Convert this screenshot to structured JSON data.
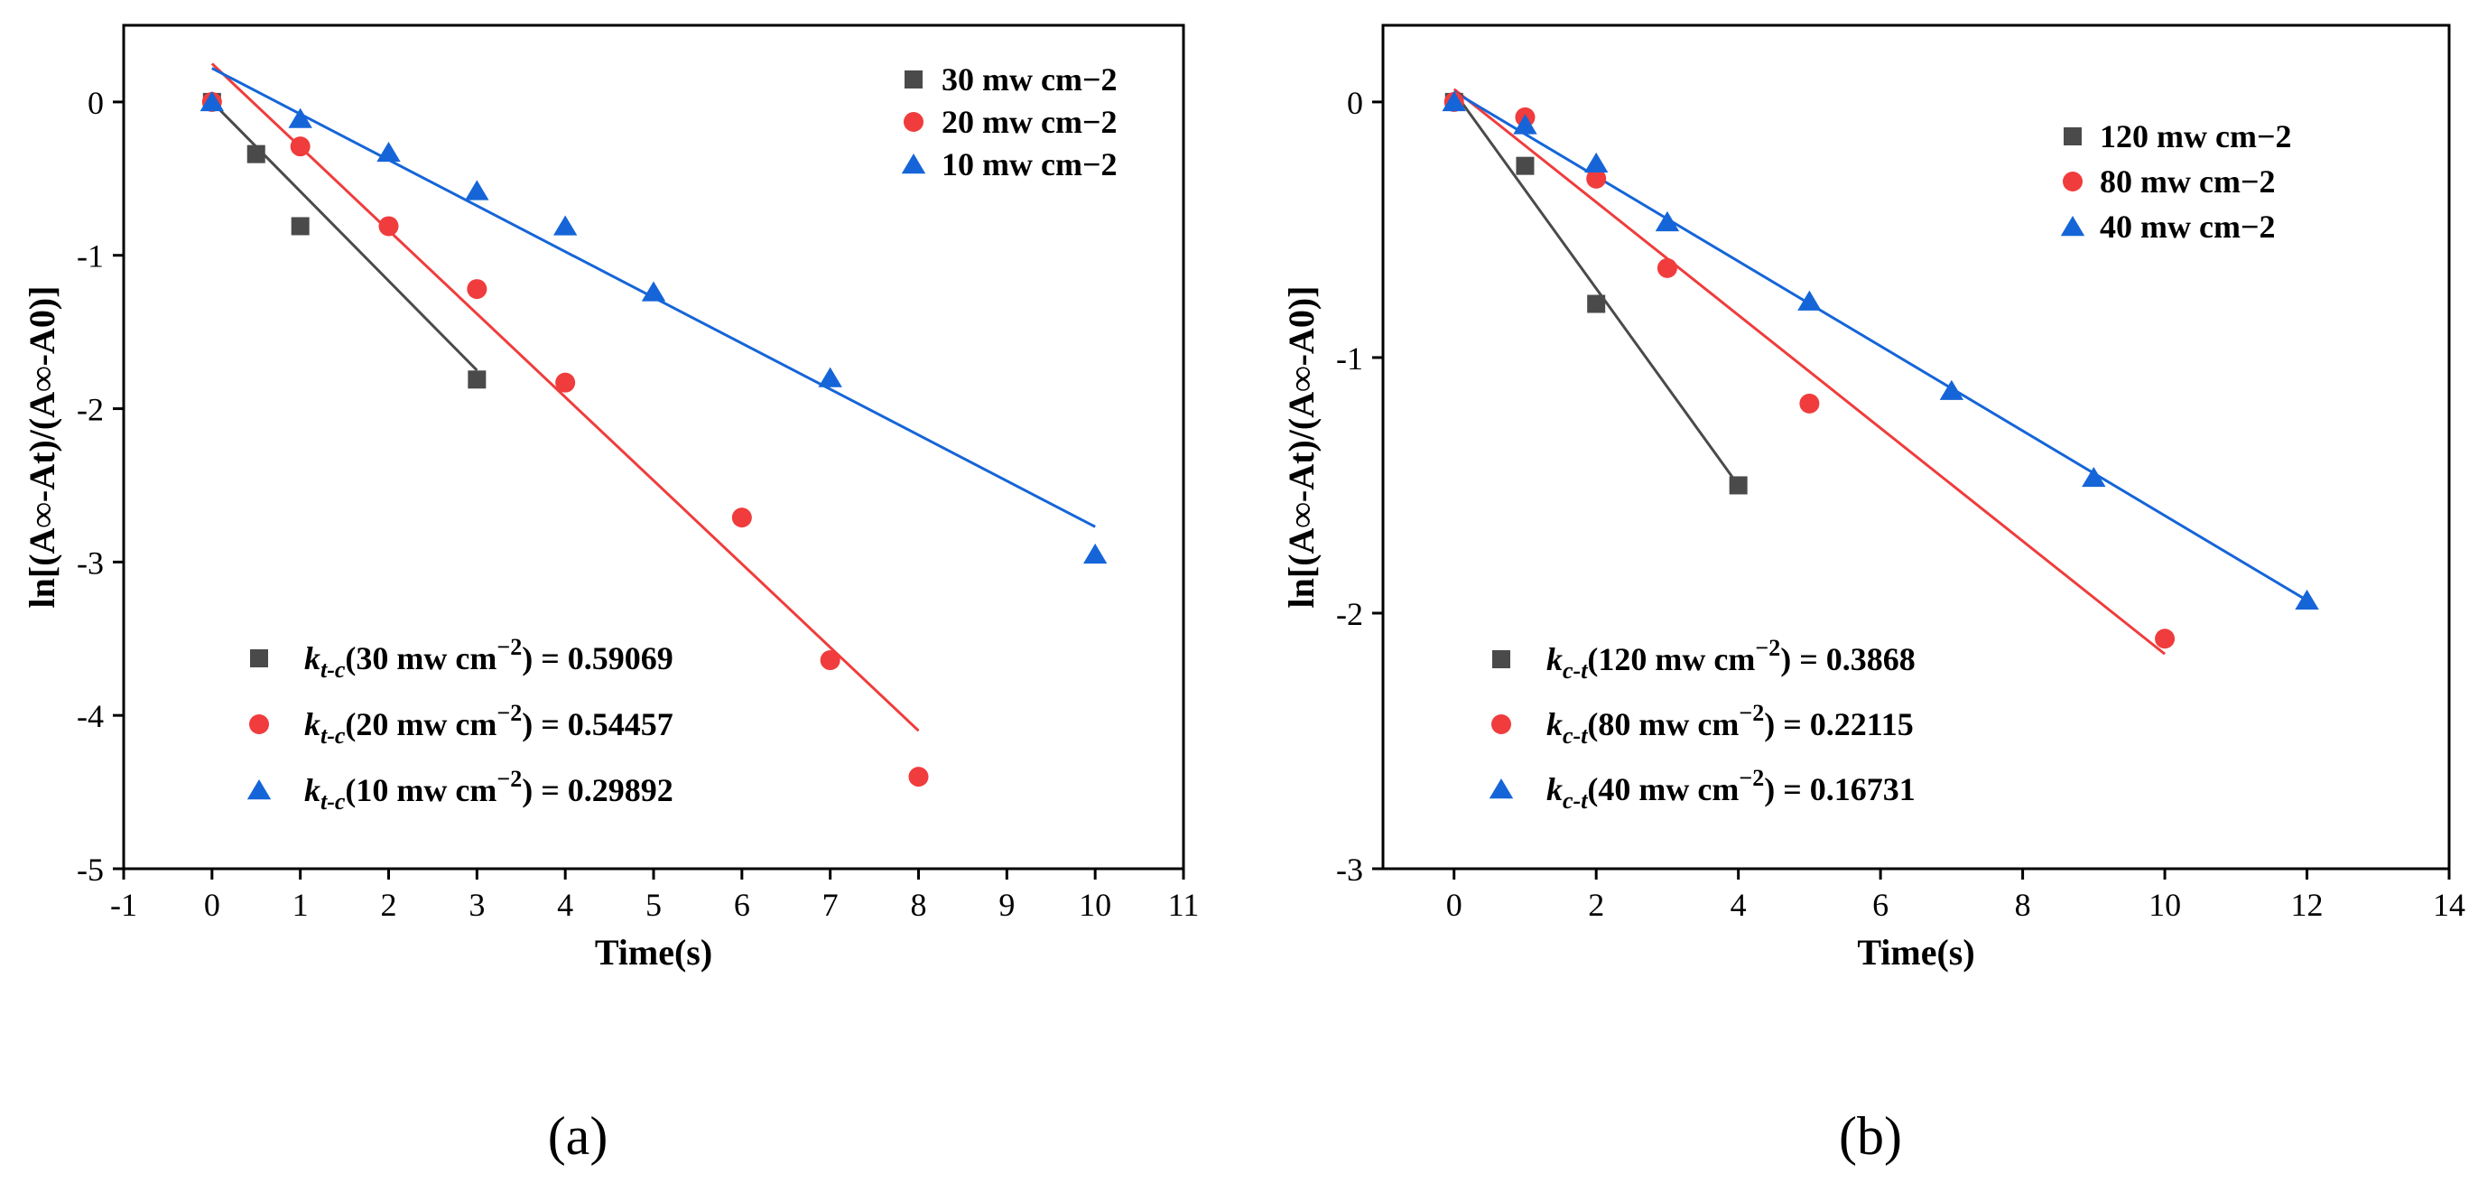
{
  "chart_data": [
    {
      "type": "scatter",
      "panel_label": "(a)",
      "xlabel": "Time(s)",
      "ylabel": "ln[(A∞-At)/(A∞-A0)]",
      "xlim": [
        -1,
        11
      ],
      "ylim": [
        -5,
        0.5
      ],
      "xticks": [
        -1,
        0,
        1,
        2,
        3,
        4,
        5,
        6,
        7,
        8,
        9,
        10,
        11
      ],
      "yticks": [
        -5,
        -4,
        -3,
        -2,
        -1,
        0
      ],
      "series": [
        {
          "name": "30 mw cm−2",
          "color": "#4a4a4a",
          "marker": "square",
          "x": [
            0,
            0.5,
            1,
            3
          ],
          "y": [
            0,
            -0.34,
            -0.81,
            -1.81
          ],
          "fit": {
            "x0": 0,
            "y0": 0,
            "x1": 3,
            "y1": -1.75
          }
        },
        {
          "name": "20 mw cm−2",
          "color": "#f03c3c",
          "marker": "circle",
          "x": [
            0,
            1,
            2,
            3,
            4,
            6,
            7,
            8
          ],
          "y": [
            0,
            -0.29,
            -0.81,
            -1.22,
            -1.83,
            -2.71,
            -3.64,
            -4.4
          ],
          "fit": {
            "x0": 0,
            "y0": 0.25,
            "x1": 8,
            "y1": -4.1
          }
        },
        {
          "name": "10 mw cm−2",
          "color": "#1565d8",
          "marker": "triangle",
          "x": [
            0,
            1,
            2,
            3,
            4,
            5,
            7,
            10
          ],
          "y": [
            0,
            -0.11,
            -0.33,
            -0.58,
            -0.81,
            -1.24,
            -1.8,
            -2.95
          ],
          "fit": {
            "x0": 0,
            "y0": 0.22,
            "x1": 10,
            "y1": -2.77
          }
        }
      ],
      "legend_top": {
        "position": "top-right",
        "labels": [
          "30 mw cm−2",
          "20 mw cm−2",
          "10 mw cm−2"
        ]
      },
      "legend_bottom": {
        "position": "bottom-left",
        "entries": [
          {
            "k": "k",
            "sub": "t-c",
            "condition": "(30 mw cm",
            "sup": "−2",
            "value": ") = 0.59069"
          },
          {
            "k": "k",
            "sub": "t-c",
            "condition": "(20 mw cm",
            "sup": "−2",
            "value": ") = 0.54457"
          },
          {
            "k": "k",
            "sub": "t-c",
            "condition": "(10 mw cm",
            "sup": "−2",
            "value": ") = 0.29892"
          }
        ]
      }
    },
    {
      "type": "scatter",
      "panel_label": "(b)",
      "xlabel": "Time(s)",
      "ylabel": "ln[(A∞-At)/(A∞-A0)]",
      "xlim": [
        -1,
        14
      ],
      "ylim": [
        -3,
        0.3
      ],
      "xticks": [
        0,
        2,
        4,
        6,
        8,
        10,
        12,
        14
      ],
      "yticks": [
        -3,
        -2,
        -1,
        0
      ],
      "series": [
        {
          "name": "120 mw cm−2",
          "color": "#4a4a4a",
          "marker": "square",
          "x": [
            0,
            1,
            2,
            4
          ],
          "y": [
            0,
            -0.25,
            -0.79,
            -1.5
          ],
          "fit": {
            "x0": 0,
            "y0": 0.04,
            "x1": 4,
            "y1": -1.5
          }
        },
        {
          "name": "80 mw cm−2",
          "color": "#f03c3c",
          "marker": "circle",
          "x": [
            0,
            1,
            2,
            3,
            5,
            10
          ],
          "y": [
            0,
            -0.06,
            -0.3,
            -0.65,
            -1.18,
            -2.1
          ],
          "fit": {
            "x0": 0,
            "y0": 0.05,
            "x1": 10,
            "y1": -2.16
          }
        },
        {
          "name": "40 mw cm−2",
          "color": "#1565d8",
          "marker": "triangle",
          "x": [
            0,
            1,
            2,
            3,
            5,
            7,
            9,
            12
          ],
          "y": [
            0,
            -0.09,
            -0.24,
            -0.47,
            -0.78,
            -1.13,
            -1.47,
            -1.95
          ],
          "fit": {
            "x0": 0,
            "y0": 0.04,
            "x1": 12,
            "y1": -1.95
          }
        }
      ],
      "legend_top": {
        "position": "top-right",
        "labels": [
          "120 mw cm−2",
          "80 mw cm−2",
          "40 mw cm−2"
        ]
      },
      "legend_bottom": {
        "position": "bottom-left",
        "entries": [
          {
            "k": "k",
            "sub": "c-t",
            "condition": "(120 mw cm",
            "sup": "−2",
            "value": ") = 0.3868"
          },
          {
            "k": "k",
            "sub": "c-t",
            "condition": "(80 mw cm",
            "sup": "−2",
            "value": ") = 0.22115"
          },
          {
            "k": "k",
            "sub": "c-t",
            "condition": "(40 mw cm",
            "sup": "−2",
            "value": ") = 0.16731"
          }
        ]
      }
    }
  ]
}
